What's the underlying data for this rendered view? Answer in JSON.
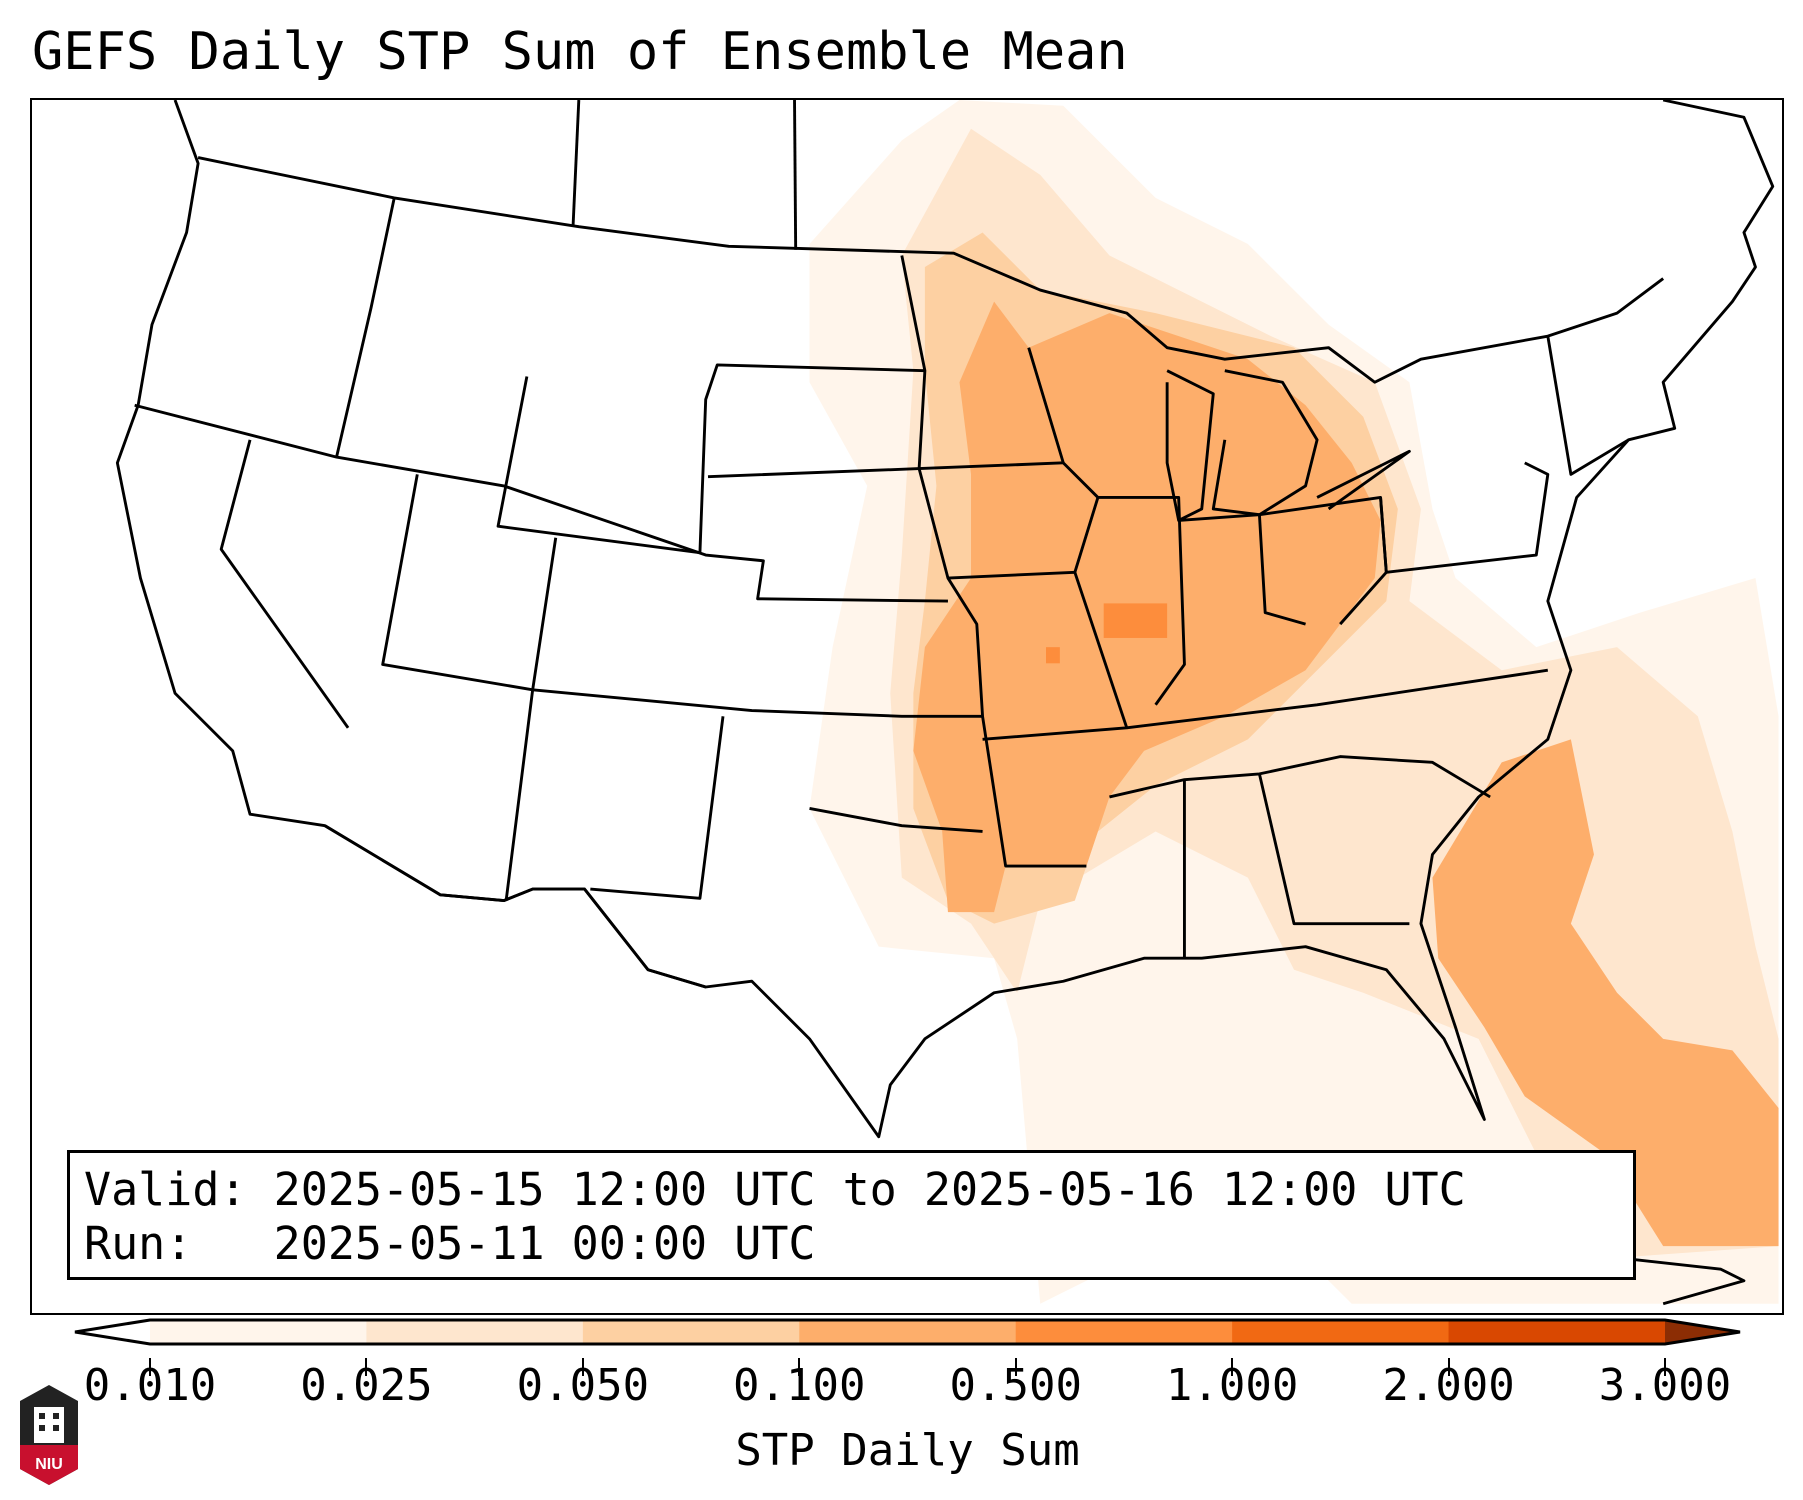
{
  "title": "GEFS Daily STP Sum of Ensemble Mean",
  "info": {
    "valid_label": "Valid:",
    "valid_value": "2025-05-15 12:00 UTC to 2025-05-16 12:00 UTC",
    "run_label": "Run:",
    "run_value": "2025-05-11 00:00 UTC"
  },
  "colorbar": {
    "label": "STP Daily Sum",
    "ticks": [
      "0.010",
      "0.025",
      "0.050",
      "0.100",
      "0.500",
      "1.000",
      "2.000",
      "3.000"
    ],
    "colors": [
      "#fff5eb",
      "#fee6ce",
      "#fdd0a2",
      "#fdae6b",
      "#fd8d3c",
      "#f16913",
      "#d94801"
    ],
    "under_color": "#ffffff",
    "over_color": "#8c2d04"
  },
  "logo": {
    "text": "NIU"
  }
}
